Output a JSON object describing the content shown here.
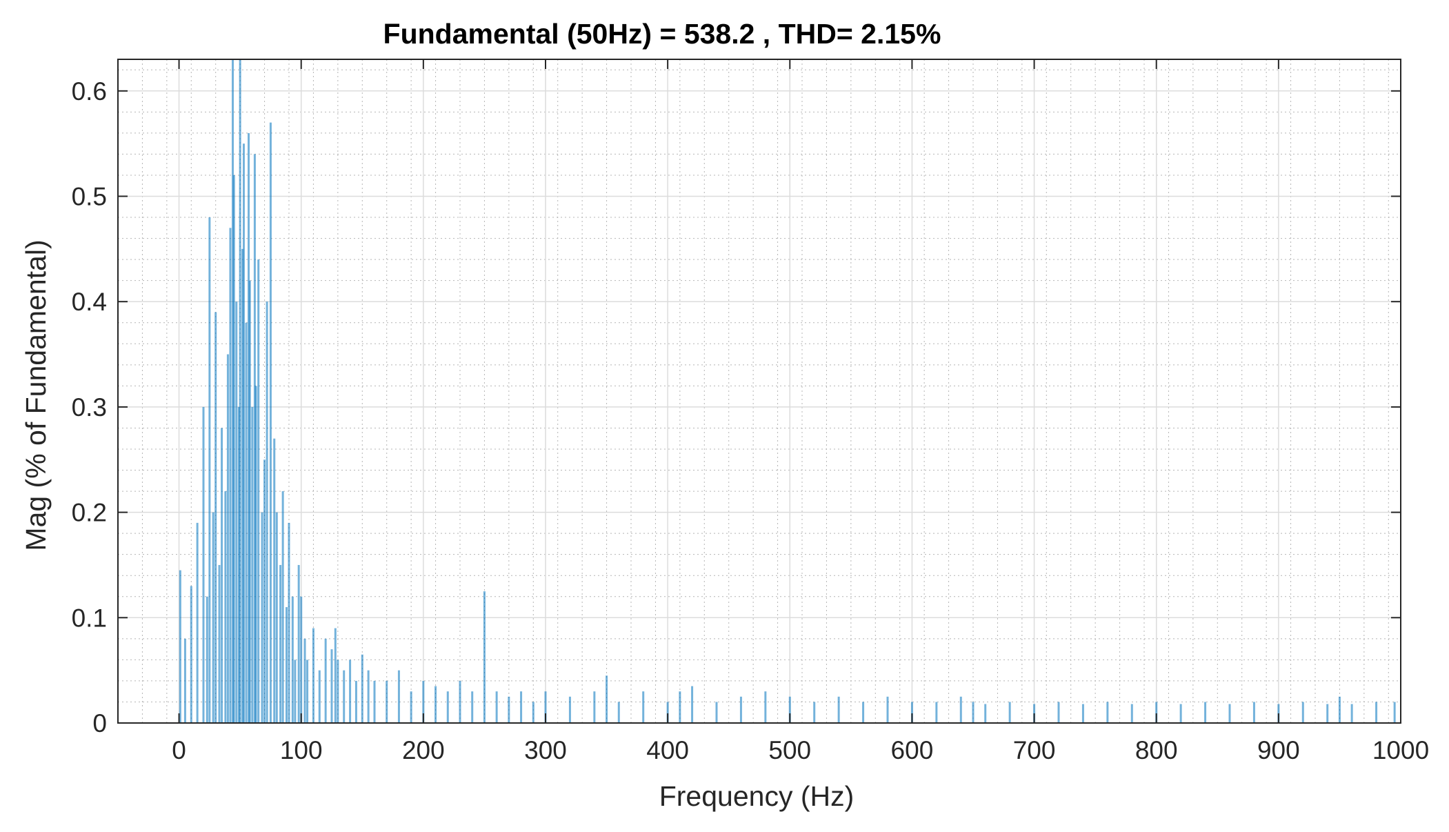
{
  "chart_data": {
    "type": "bar",
    "title": "Fundamental (50Hz) = 538.2 , THD= 2.15%",
    "xlabel": "Frequency (Hz)",
    "ylabel": "Mag (% of Fundamental)",
    "xlim": [
      -50,
      1000
    ],
    "ylim": [
      0,
      0.63
    ],
    "xticks": [
      "0",
      "100",
      "200",
      "300",
      "400",
      "500",
      "600",
      "700",
      "800",
      "900",
      "1000"
    ],
    "yticks": [
      "0",
      "0.1",
      "0.2",
      "0.3",
      "0.4",
      "0.5",
      "0.6"
    ],
    "grid": "major and minor",
    "bar_color": "#0072BD",
    "series": [
      {
        "x": [
          1,
          5,
          10,
          15,
          20,
          23,
          25,
          28,
          30,
          33,
          35,
          38,
          40,
          42,
          44,
          45,
          47,
          49,
          50,
          52,
          53,
          55,
          57,
          58,
          60,
          62,
          63,
          65,
          68,
          70,
          72,
          75,
          78,
          80,
          83,
          85,
          88,
          90,
          93,
          95,
          98,
          100,
          103,
          105,
          110,
          115,
          120,
          125,
          128,
          130,
          135,
          140,
          145,
          150,
          155,
          160,
          170,
          180,
          190,
          200,
          210,
          220,
          230,
          240,
          250,
          260,
          270,
          280,
          290,
          300,
          320,
          340,
          350,
          360,
          380,
          400,
          410,
          420,
          440,
          460,
          480,
          500,
          520,
          540,
          560,
          580,
          600,
          620,
          640,
          650,
          660,
          680,
          700,
          720,
          740,
          760,
          780,
          800,
          820,
          840,
          860,
          880,
          900,
          920,
          940,
          950,
          960,
          980,
          995
        ],
        "y": [
          0.145,
          0.08,
          0.13,
          0.19,
          0.3,
          0.12,
          0.48,
          0.2,
          0.39,
          0.15,
          0.28,
          0.22,
          0.35,
          0.47,
          0.63,
          0.52,
          0.4,
          0.3,
          0.63,
          0.45,
          0.55,
          0.38,
          0.56,
          0.42,
          0.3,
          0.54,
          0.32,
          0.44,
          0.2,
          0.25,
          0.4,
          0.57,
          0.27,
          0.2,
          0.15,
          0.22,
          0.11,
          0.19,
          0.12,
          0.06,
          0.15,
          0.12,
          0.08,
          0.06,
          0.09,
          0.05,
          0.08,
          0.07,
          0.09,
          0.06,
          0.05,
          0.06,
          0.04,
          0.065,
          0.05,
          0.04,
          0.04,
          0.05,
          0.03,
          0.04,
          0.035,
          0.03,
          0.04,
          0.03,
          0.125,
          0.03,
          0.025,
          0.03,
          0.02,
          0.03,
          0.025,
          0.03,
          0.045,
          0.02,
          0.03,
          0.02,
          0.03,
          0.035,
          0.02,
          0.025,
          0.03,
          0.025,
          0.02,
          0.025,
          0.02,
          0.025,
          0.02,
          0.02,
          0.025,
          0.02,
          0.018,
          0.02,
          0.018,
          0.02,
          0.018,
          0.02,
          0.018,
          0.02,
          0.018,
          0.02,
          0.018,
          0.02,
          0.018,
          0.02,
          0.018,
          0.025,
          0.018,
          0.02,
          0.02
        ]
      }
    ]
  }
}
